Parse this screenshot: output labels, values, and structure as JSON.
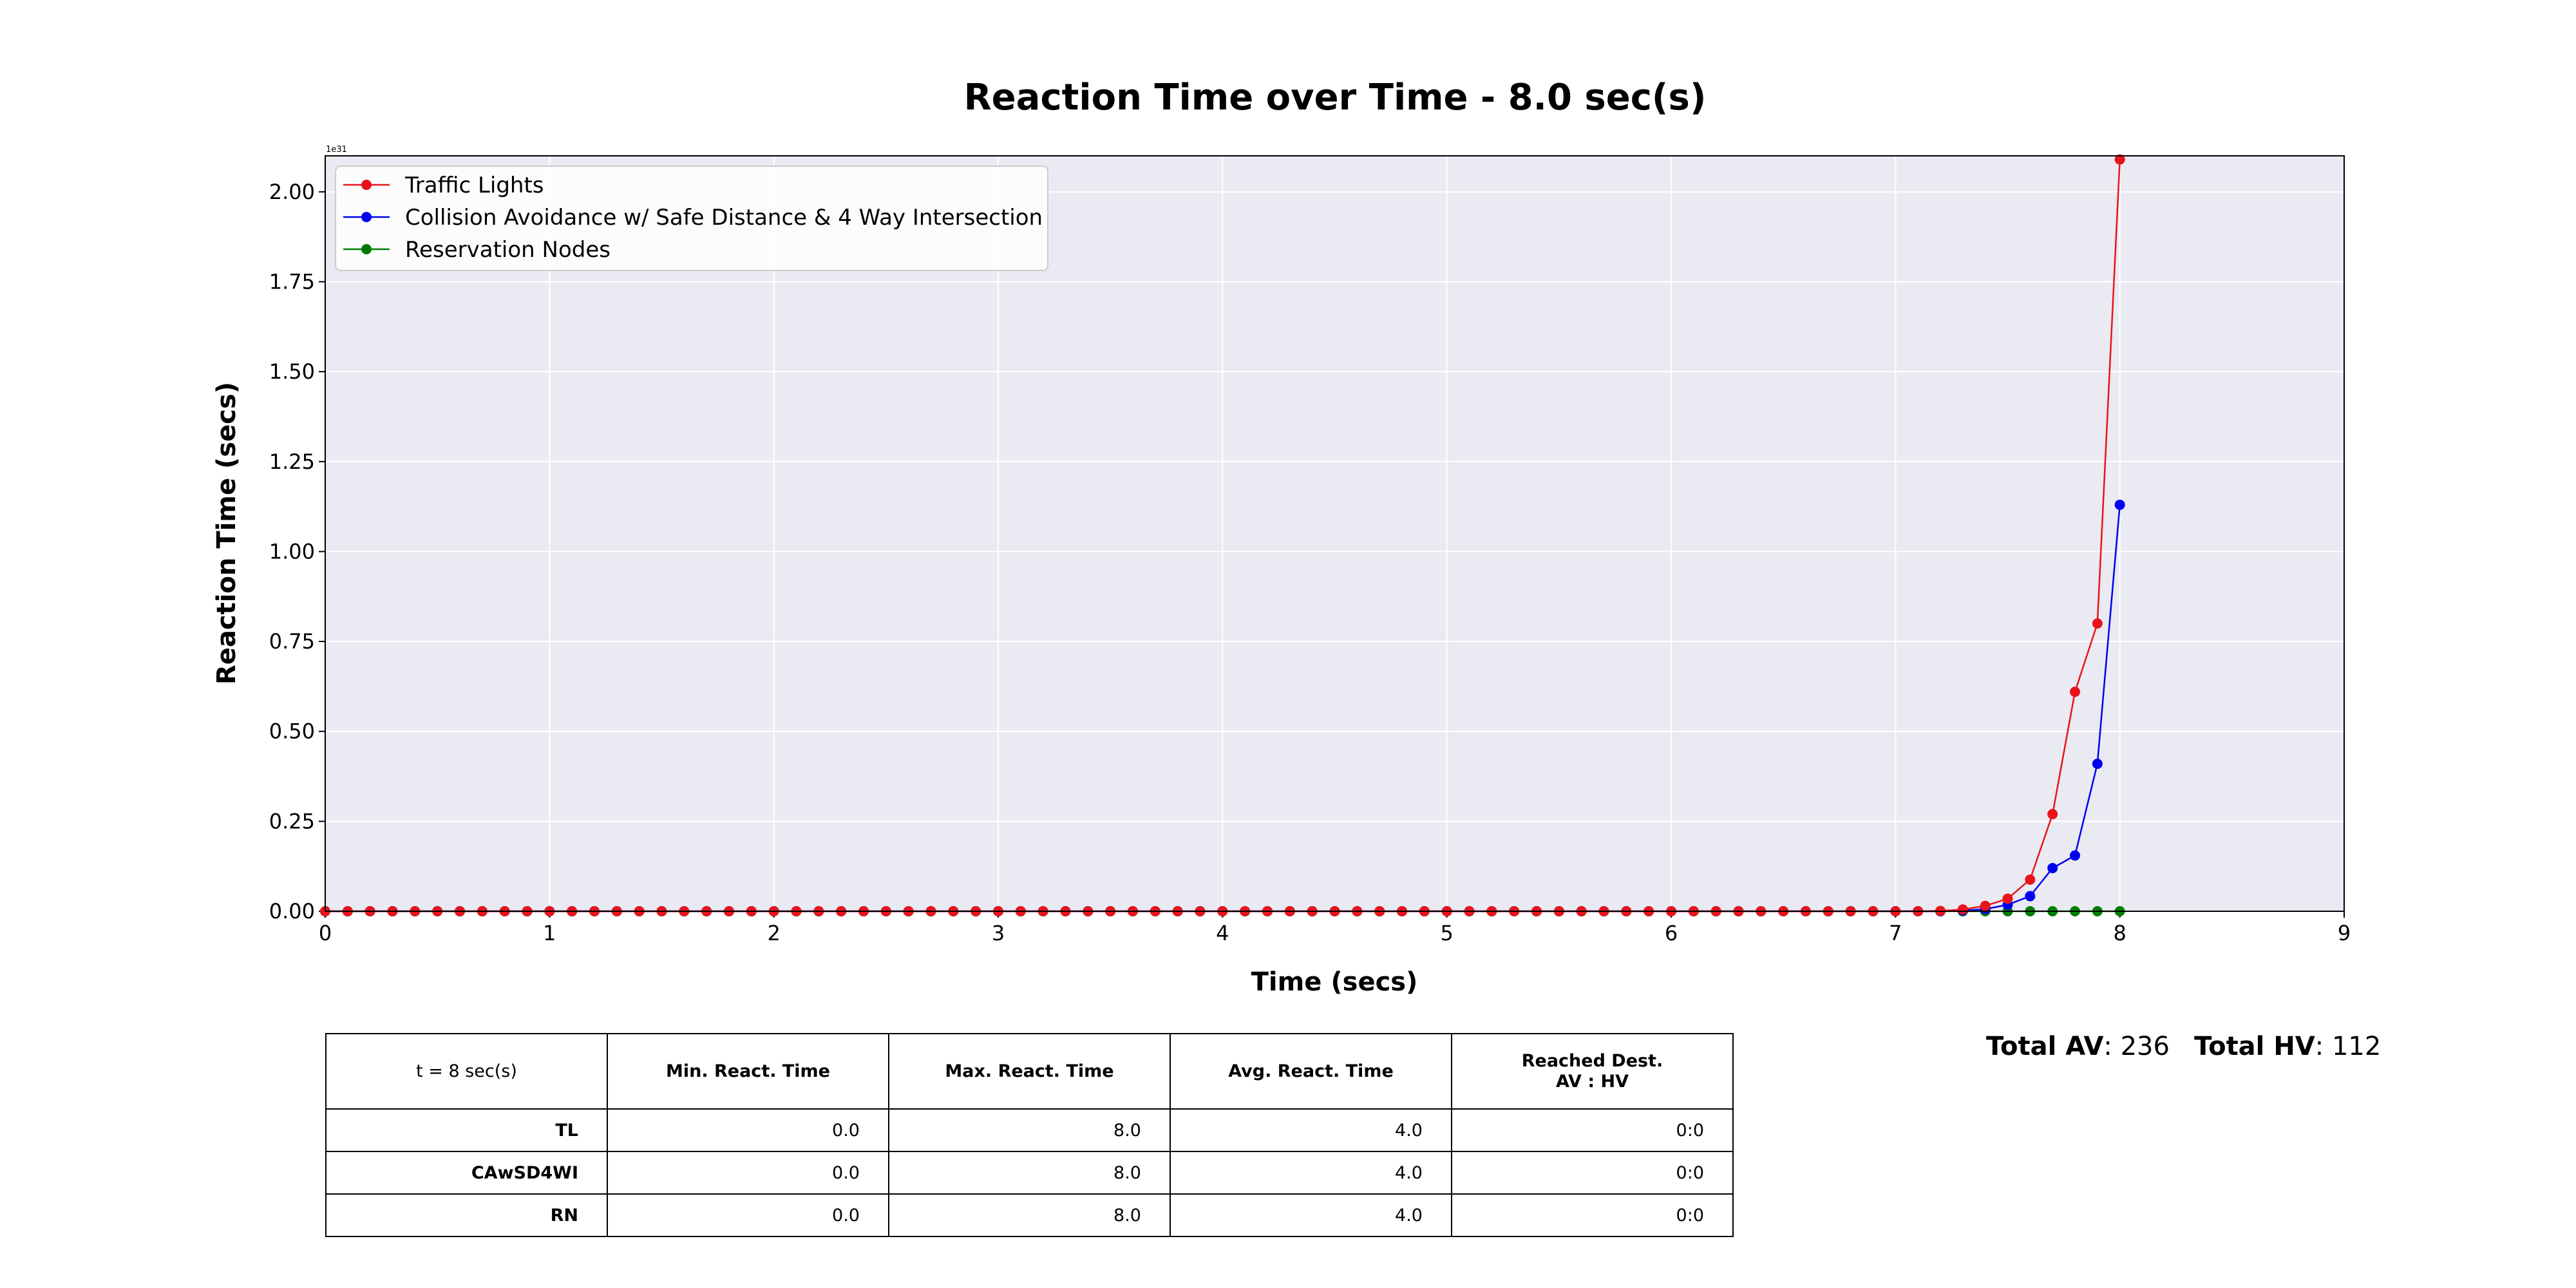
{
  "chart_data": {
    "type": "line",
    "title": "Reaction Time over Time - 8.0 sec(s)",
    "xlabel": "Time (secs)",
    "ylabel": "Reaction Time (secs)",
    "y_scale_label": "1e31",
    "xlim": [
      0,
      9
    ],
    "ylim": [
      0,
      2.1
    ],
    "x_ticks": [
      "0",
      "1",
      "2",
      "3",
      "4",
      "5",
      "6",
      "7",
      "8",
      "9"
    ],
    "y_ticks": [
      "0.00",
      "0.25",
      "0.50",
      "0.75",
      "1.00",
      "1.25",
      "1.50",
      "1.75",
      "2.00"
    ],
    "grid": true,
    "legend_position": "upper-left",
    "x": [
      0.0,
      0.1,
      0.2,
      0.3,
      0.4,
      0.5,
      0.6,
      0.7,
      0.8,
      0.9,
      1.0,
      1.1,
      1.2,
      1.3,
      1.4,
      1.5,
      1.6,
      1.7,
      1.8,
      1.9,
      2.0,
      2.1,
      2.2,
      2.3,
      2.4,
      2.5,
      2.6,
      2.7,
      2.8,
      2.9,
      3.0,
      3.1,
      3.2,
      3.3,
      3.4,
      3.5,
      3.6,
      3.7,
      3.8,
      3.9,
      4.0,
      4.1,
      4.2,
      4.3,
      4.4,
      4.5,
      4.6,
      4.7,
      4.8,
      4.9,
      5.0,
      5.1,
      5.2,
      5.3,
      5.4,
      5.5,
      5.6,
      5.7,
      5.8,
      5.9,
      6.0,
      6.1,
      6.2,
      6.3,
      6.4,
      6.5,
      6.6,
      6.7,
      6.8,
      6.9,
      7.0,
      7.1,
      7.2,
      7.3,
      7.4,
      7.5,
      7.6,
      7.7,
      7.8,
      7.9,
      8.0
    ],
    "series": [
      {
        "name": "Traffic Lights",
        "color": "#e8141c",
        "values": [
          0,
          0,
          0,
          0,
          0,
          0,
          0,
          0,
          0,
          0,
          0,
          0,
          0,
          0,
          0,
          0,
          0,
          0,
          0,
          0,
          0,
          0,
          0,
          0,
          0,
          0,
          0,
          0,
          0,
          0,
          0,
          0,
          0,
          0,
          0,
          0,
          0,
          0,
          0,
          0,
          0,
          0,
          0,
          0,
          0,
          0,
          0,
          0,
          0,
          0,
          0,
          0,
          0,
          0,
          0,
          0,
          0,
          0,
          0,
          0,
          0,
          0,
          0,
          0,
          0,
          0,
          0,
          0,
          0,
          0,
          0,
          0,
          0.001,
          0.005,
          0.015,
          0.035,
          0.088,
          0.27,
          0.61,
          0.8,
          2.09
        ]
      },
      {
        "name": "Collision Avoidance w/ Safe Distance & 4 Way Intersection",
        "color": "#0000f0",
        "values": [
          0,
          0,
          0,
          0,
          0,
          0,
          0,
          0,
          0,
          0,
          0,
          0,
          0,
          0,
          0,
          0,
          0,
          0,
          0,
          0,
          0,
          0,
          0,
          0,
          0,
          0,
          0,
          0,
          0,
          0,
          0,
          0,
          0,
          0,
          0,
          0,
          0,
          0,
          0,
          0,
          0,
          0,
          0,
          0,
          0,
          0,
          0,
          0,
          0,
          0,
          0,
          0,
          0,
          0,
          0,
          0,
          0,
          0,
          0,
          0,
          0,
          0,
          0,
          0,
          0,
          0,
          0,
          0,
          0,
          0,
          0,
          0,
          0,
          0.002,
          0.006,
          0.018,
          0.042,
          0.12,
          0.155,
          0.41,
          1.13
        ]
      },
      {
        "name": "Reservation Nodes",
        "color": "#007d00",
        "values": [
          0,
          0,
          0,
          0,
          0,
          0,
          0,
          0,
          0,
          0,
          0,
          0,
          0,
          0,
          0,
          0,
          0,
          0,
          0,
          0,
          0,
          0,
          0,
          0,
          0,
          0,
          0,
          0,
          0,
          0,
          0,
          0,
          0,
          0,
          0,
          0,
          0,
          0,
          0,
          0,
          0,
          0,
          0,
          0,
          0,
          0,
          0,
          0,
          0,
          0,
          0,
          0,
          0,
          0,
          0,
          0,
          0,
          0,
          0,
          0,
          0,
          0,
          0,
          0,
          0,
          0,
          0,
          0,
          0,
          0,
          0,
          0,
          0,
          0,
          0,
          0,
          0,
          0,
          0,
          0,
          0
        ]
      }
    ]
  },
  "table": {
    "corner": "t = 8 sec(s)",
    "columns": [
      "Min. React. Time",
      "Max. React. Time",
      "Avg. React. Time",
      "Reached Dest.\nAV : HV"
    ],
    "rows": [
      {
        "label": "TL",
        "values": [
          "0.0",
          "8.0",
          "4.0",
          "0:0"
        ]
      },
      {
        "label": "CAwSD4WI",
        "values": [
          "0.0",
          "8.0",
          "4.0",
          "0:0"
        ]
      },
      {
        "label": "RN",
        "values": [
          "0.0",
          "8.0",
          "4.0",
          "0:0"
        ]
      }
    ]
  },
  "totals": {
    "av_label": "Total AV",
    "av_value": ": 236",
    "hv_label": "Total HV",
    "hv_value": ": 112"
  }
}
